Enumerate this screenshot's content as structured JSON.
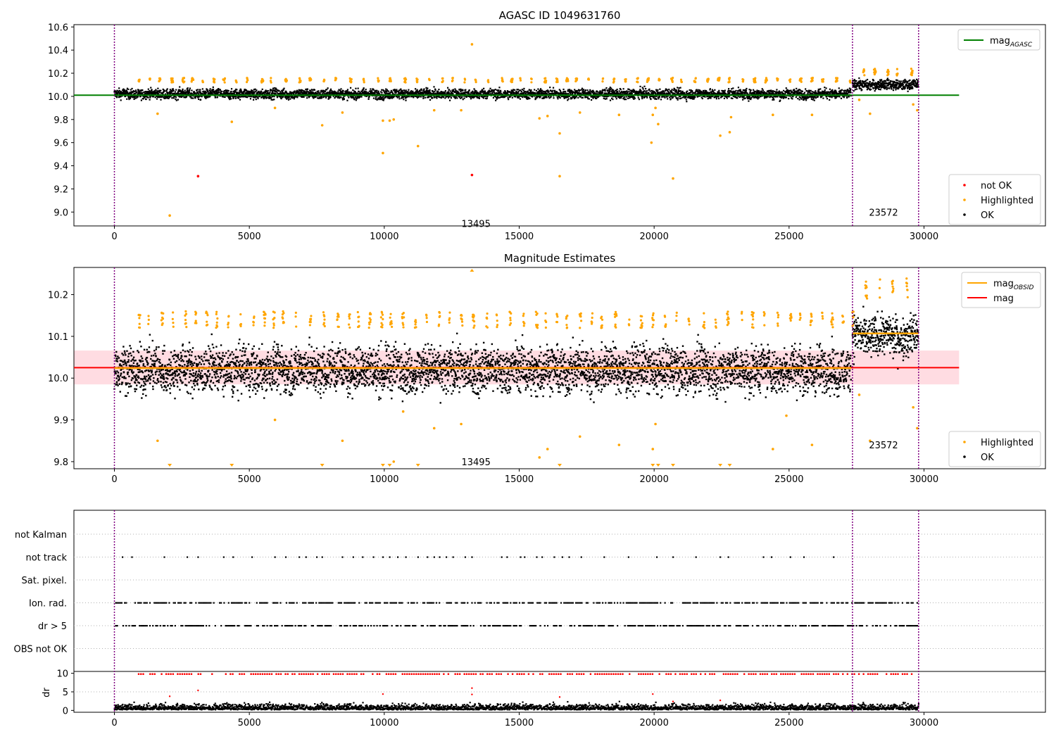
{
  "colors": {
    "ok": "#000000",
    "not_ok": "#ff0000",
    "highlighted": "#ffa500",
    "mag_agasc": "#008000",
    "mag_obsid": "#ffa500",
    "mag": "#ff0000",
    "band": "#ffc0cb",
    "obs_marker": "#800080",
    "grid": "#b0b0b0"
  },
  "chart_data": [
    {
      "type": "scatter",
      "title": "AGASC ID 1049631760",
      "xlim": [
        -1500,
        34500
      ],
      "ylim": [
        8.88,
        10.62
      ],
      "xticks": [
        0,
        5000,
        10000,
        15000,
        20000,
        25000,
        30000
      ],
      "yticks": [
        9.0,
        9.2,
        9.4,
        9.6,
        9.8,
        10.0,
        10.2,
        10.4,
        10.6
      ],
      "obs_boundaries": [
        0,
        27350,
        29800
      ],
      "obs_annotations": [
        {
          "text": "13495",
          "x": 13400,
          "y": 8.9
        },
        {
          "text": "23572",
          "x": 28500,
          "y": 9.0
        }
      ],
      "lines": [
        {
          "name": "mag",
          "sub": "AGASC",
          "value": 10.01,
          "x": [
            -1500,
            31300
          ],
          "color": "#008000"
        }
      ],
      "series": [
        {
          "name": "not OK",
          "color": "#ff0000",
          "points": [
            [
              3100,
              9.31
            ],
            [
              13250,
              9.32
            ]
          ]
        },
        {
          "name": "Highlighted",
          "color": "#ffa500",
          "points": [
            [
              1600,
              9.85
            ],
            [
              2050,
              8.97
            ],
            [
              4350,
              9.78
            ],
            [
              5950,
              9.9
            ],
            [
              7700,
              9.75
            ],
            [
              8450,
              9.86
            ],
            [
              9950,
              9.51
            ],
            [
              9950,
              9.79
            ],
            [
              10200,
              9.79
            ],
            [
              10350,
              9.8
            ],
            [
              11250,
              9.57
            ],
            [
              11850,
              9.88
            ],
            [
              12850,
              9.88
            ],
            [
              13250,
              10.45
            ],
            [
              15750,
              9.81
            ],
            [
              16050,
              9.83
            ],
            [
              16500,
              9.68
            ],
            [
              16500,
              9.31
            ],
            [
              17250,
              9.86
            ],
            [
              18700,
              9.84
            ],
            [
              19900,
              9.6
            ],
            [
              19950,
              9.84
            ],
            [
              20050,
              9.9
            ],
            [
              20150,
              9.76
            ],
            [
              20700,
              9.29
            ],
            [
              22450,
              9.66
            ],
            [
              22800,
              9.69
            ],
            [
              22850,
              9.82
            ],
            [
              24400,
              9.84
            ],
            [
              25850,
              9.84
            ],
            [
              27600,
              9.97
            ],
            [
              28000,
              9.85
            ],
            [
              29600,
              9.93
            ],
            [
              29750,
              9.88
            ]
          ]
        },
        {
          "name": "OK",
          "color": "#000000",
          "points": []
        }
      ],
      "legend_top": [
        {
          "label": "mag",
          "sub": "AGASC",
          "kind": "line",
          "color": "#008000"
        }
      ],
      "legend_bottom": [
        {
          "label": "not OK",
          "kind": "dot",
          "color": "#ff0000"
        },
        {
          "label": "Highlighted",
          "kind": "dot",
          "color": "#ffa500"
        },
        {
          "label": "OK",
          "kind": "dot",
          "color": "#000000"
        }
      ],
      "density": {
        "segments": [
          {
            "x0": 0,
            "x1": 27300,
            "center": 10.02,
            "spread": 0.035
          },
          {
            "x0": 27350,
            "x1": 29800,
            "center": 10.1,
            "spread": 0.035
          }
        ],
        "highlight_level": [
          10.12,
          10.16
        ],
        "highlight_level_2": [
          10.18,
          10.24
        ]
      }
    },
    {
      "type": "scatter",
      "title": "Magnitude Estimates",
      "xlim": [
        -1500,
        34500
      ],
      "ylim": [
        9.783,
        10.265
      ],
      "xticks": [
        0,
        5000,
        10000,
        15000,
        20000,
        25000,
        30000
      ],
      "yticks": [
        9.8,
        9.9,
        10.0,
        10.1,
        10.2
      ],
      "obs_boundaries": [
        0,
        27350,
        29800
      ],
      "obs_annotations": [
        {
          "text": "13495",
          "x": 13400,
          "y": 9.8
        },
        {
          "text": "23572",
          "x": 28500,
          "y": 9.84
        }
      ],
      "lines": [
        {
          "name": "mag",
          "sub": "OBSID",
          "segments": [
            {
              "x0": 0,
              "x1": 27300,
              "value": 10.024
            },
            {
              "x0": 27350,
              "x1": 29800,
              "value": 10.107
            }
          ],
          "color": "#ffa500"
        },
        {
          "name": "mag",
          "value": 10.025,
          "x": [
            -1500,
            31300
          ],
          "color": "#ff0000"
        }
      ],
      "band": {
        "low": 9.985,
        "high": 10.066,
        "x": [
          -1500,
          31300
        ]
      },
      "series": [
        {
          "name": "Highlighted",
          "color": "#ffa500",
          "points": [
            [
              1600,
              9.85
            ],
            [
              5950,
              9.9
            ],
            [
              8450,
              9.85
            ],
            [
              10350,
              9.8
            ],
            [
              10700,
              9.92
            ],
            [
              11850,
              9.88
            ],
            [
              12850,
              9.89
            ],
            [
              15750,
              9.81
            ],
            [
              16050,
              9.83
            ],
            [
              17250,
              9.86
            ],
            [
              18700,
              9.84
            ],
            [
              19950,
              9.83
            ],
            [
              20050,
              9.89
            ],
            [
              24400,
              9.83
            ],
            [
              24900,
              9.91
            ],
            [
              25850,
              9.84
            ],
            [
              27600,
              9.96
            ],
            [
              28000,
              9.85
            ],
            [
              29600,
              9.93
            ],
            [
              29750,
              9.88
            ]
          ]
        },
        {
          "name": "OK",
          "color": "#000000",
          "points": []
        }
      ],
      "down_markers": [
        2050,
        4350,
        7700,
        9950,
        10200,
        11250,
        16500,
        19950,
        20150,
        20700,
        22450,
        22800
      ],
      "up_markers": [
        13250
      ],
      "legend_top": [
        {
          "label": "mag",
          "sub": "OBSID",
          "kind": "line",
          "color": "#ffa500"
        },
        {
          "label": "mag",
          "kind": "line",
          "color": "#ff0000"
        }
      ],
      "legend_bottom": [
        {
          "label": "Highlighted",
          "kind": "dot",
          "color": "#ffa500"
        },
        {
          "label": "OK",
          "kind": "dot",
          "color": "#000000"
        }
      ],
      "density": {
        "segments": [
          {
            "x0": 0,
            "x1": 27300,
            "center": 10.02,
            "spread": 0.045
          },
          {
            "x0": 27350,
            "x1": 29800,
            "center": 10.1,
            "spread": 0.04
          }
        ],
        "highlight_level": [
          10.12,
          10.16
        ],
        "highlight_level_2": [
          10.19,
          10.24
        ]
      }
    },
    {
      "type": "scatter",
      "xlim": [
        -1500,
        34500
      ],
      "ylabel_bottom": "dr",
      "xticks": [
        0,
        5000,
        10000,
        15000,
        20000,
        25000,
        30000
      ],
      "flag_labels": [
        "not Kalman",
        "not track",
        "Sat. pixel.",
        "Ion. rad.",
        "dr > 5",
        "OBS not OK"
      ],
      "dr_yticks": [
        0,
        5,
        10
      ],
      "dr_ylim": [
        -0.5,
        10.5
      ],
      "obs_boundaries": [
        0,
        27350,
        29800
      ],
      "flags": {
        "not track": [
          300,
          650,
          1850,
          2700,
          3100,
          4050,
          4400,
          5100,
          5950,
          6350,
          6850,
          7100,
          7500,
          7700,
          8450,
          8850,
          9200,
          9600,
          9950,
          10200,
          10500,
          10800,
          11250,
          11600,
          11850,
          12050,
          12300,
          12550,
          13000,
          13250,
          14350,
          14550,
          15050,
          15200,
          15650,
          15850,
          16300,
          16600,
          16850,
          17300,
          18150,
          19050,
          20100,
          20700,
          21550,
          22450,
          22750,
          24050,
          24350,
          25050,
          25550,
          26650
        ],
        "Ion. rad.": [
          0,
          29800
        ],
        "dr > 5": [
          0,
          29800
        ]
      },
      "dr_outliers": [
        [
          2050,
          3.8
        ],
        [
          3100,
          5.4
        ],
        [
          9950,
          4.4
        ],
        [
          13250,
          6.0
        ],
        [
          13250,
          4.3
        ],
        [
          16500,
          3.6
        ],
        [
          19950,
          4.4
        ],
        [
          20700,
          2.4
        ],
        [
          22450,
          2.7
        ]
      ]
    }
  ]
}
